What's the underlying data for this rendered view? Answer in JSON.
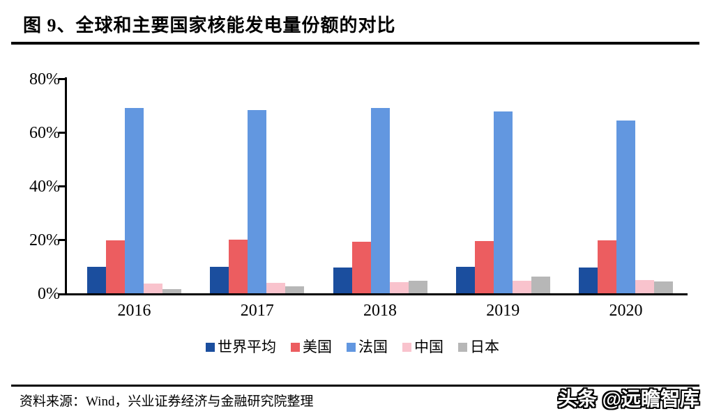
{
  "figure": {
    "title": "图 9、全球和主要国家核能发电量份额的对比",
    "source_note": "资料来源：Wind，兴业证券经济与金融研究院整理",
    "watermark": "头条 @远瞻智库"
  },
  "chart_data": {
    "type": "bar",
    "title": "全球和主要国家核能发电量份额的对比",
    "categories": [
      "2016",
      "2017",
      "2018",
      "2019",
      "2020"
    ],
    "series": [
      {
        "name": "世界平均",
        "color": "#1b4e9e",
        "values": [
          10.0,
          10.0,
          9.7,
          9.8,
          9.5
        ]
      },
      {
        "name": "美国",
        "color": "#ec5d60",
        "values": [
          19.7,
          19.9,
          19.2,
          19.5,
          19.7
        ]
      },
      {
        "name": "法国",
        "color": "#6297e0",
        "values": [
          69.0,
          68.4,
          69.0,
          67.8,
          64.3
        ]
      },
      {
        "name": "中国",
        "color": "#f9c3cd",
        "values": [
          3.6,
          3.8,
          4.1,
          4.8,
          5.0
        ]
      },
      {
        "name": "日本",
        "color": "#b7b7b7",
        "values": [
          1.6,
          2.7,
          4.6,
          6.3,
          4.3
        ]
      }
    ],
    "ylim": [
      0,
      80
    ],
    "yticks": [
      0,
      20,
      40,
      60,
      80
    ],
    "ytick_labels": [
      "0%",
      "20%",
      "40%",
      "60%",
      "80%"
    ],
    "grid": false,
    "legend_position": "bottom"
  }
}
